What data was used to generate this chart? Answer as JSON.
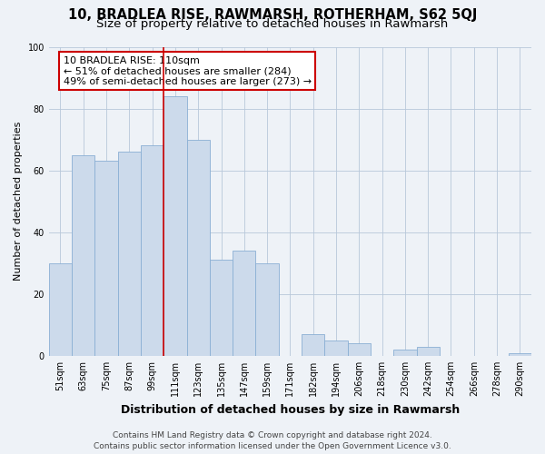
{
  "title": "10, BRADLEA RISE, RAWMARSH, ROTHERHAM, S62 5QJ",
  "subtitle": "Size of property relative to detached houses in Rawmarsh",
  "xlabel": "Distribution of detached houses by size in Rawmarsh",
  "ylabel": "Number of detached properties",
  "bar_labels": [
    "51sqm",
    "63sqm",
    "75sqm",
    "87sqm",
    "99sqm",
    "111sqm",
    "123sqm",
    "135sqm",
    "147sqm",
    "159sqm",
    "171sqm",
    "182sqm",
    "194sqm",
    "206sqm",
    "218sqm",
    "230sqm",
    "242sqm",
    "254sqm",
    "266sqm",
    "278sqm",
    "290sqm"
  ],
  "bar_values": [
    30,
    65,
    63,
    66,
    68,
    84,
    70,
    31,
    34,
    30,
    0,
    7,
    5,
    4,
    0,
    2,
    3,
    0,
    0,
    0,
    1
  ],
  "bar_color": "#ccdaeb",
  "bar_edge_color": "#8aafd4",
  "highlight_index": 5,
  "highlight_line_color": "#cc0000",
  "annotation_line1": "10 BRADLEA RISE: 110sqm",
  "annotation_line2": "← 51% of detached houses are smaller (284)",
  "annotation_line3": "49% of semi-detached houses are larger (273) →",
  "annotation_box_edge_color": "#cc0000",
  "annotation_box_face_color": "#ffffff",
  "ylim": [
    0,
    100
  ],
  "yticks": [
    0,
    20,
    40,
    60,
    80,
    100
  ],
  "footer_line1": "Contains HM Land Registry data © Crown copyright and database right 2024.",
  "footer_line2": "Contains public sector information licensed under the Open Government Licence v3.0.",
  "bg_color": "#eef2f7",
  "plot_bg_color": "#eef2f7",
  "title_fontsize": 10.5,
  "subtitle_fontsize": 9.5,
  "xlabel_fontsize": 9,
  "ylabel_fontsize": 8,
  "tick_fontsize": 7,
  "annotation_fontsize": 8,
  "footer_fontsize": 6.5
}
